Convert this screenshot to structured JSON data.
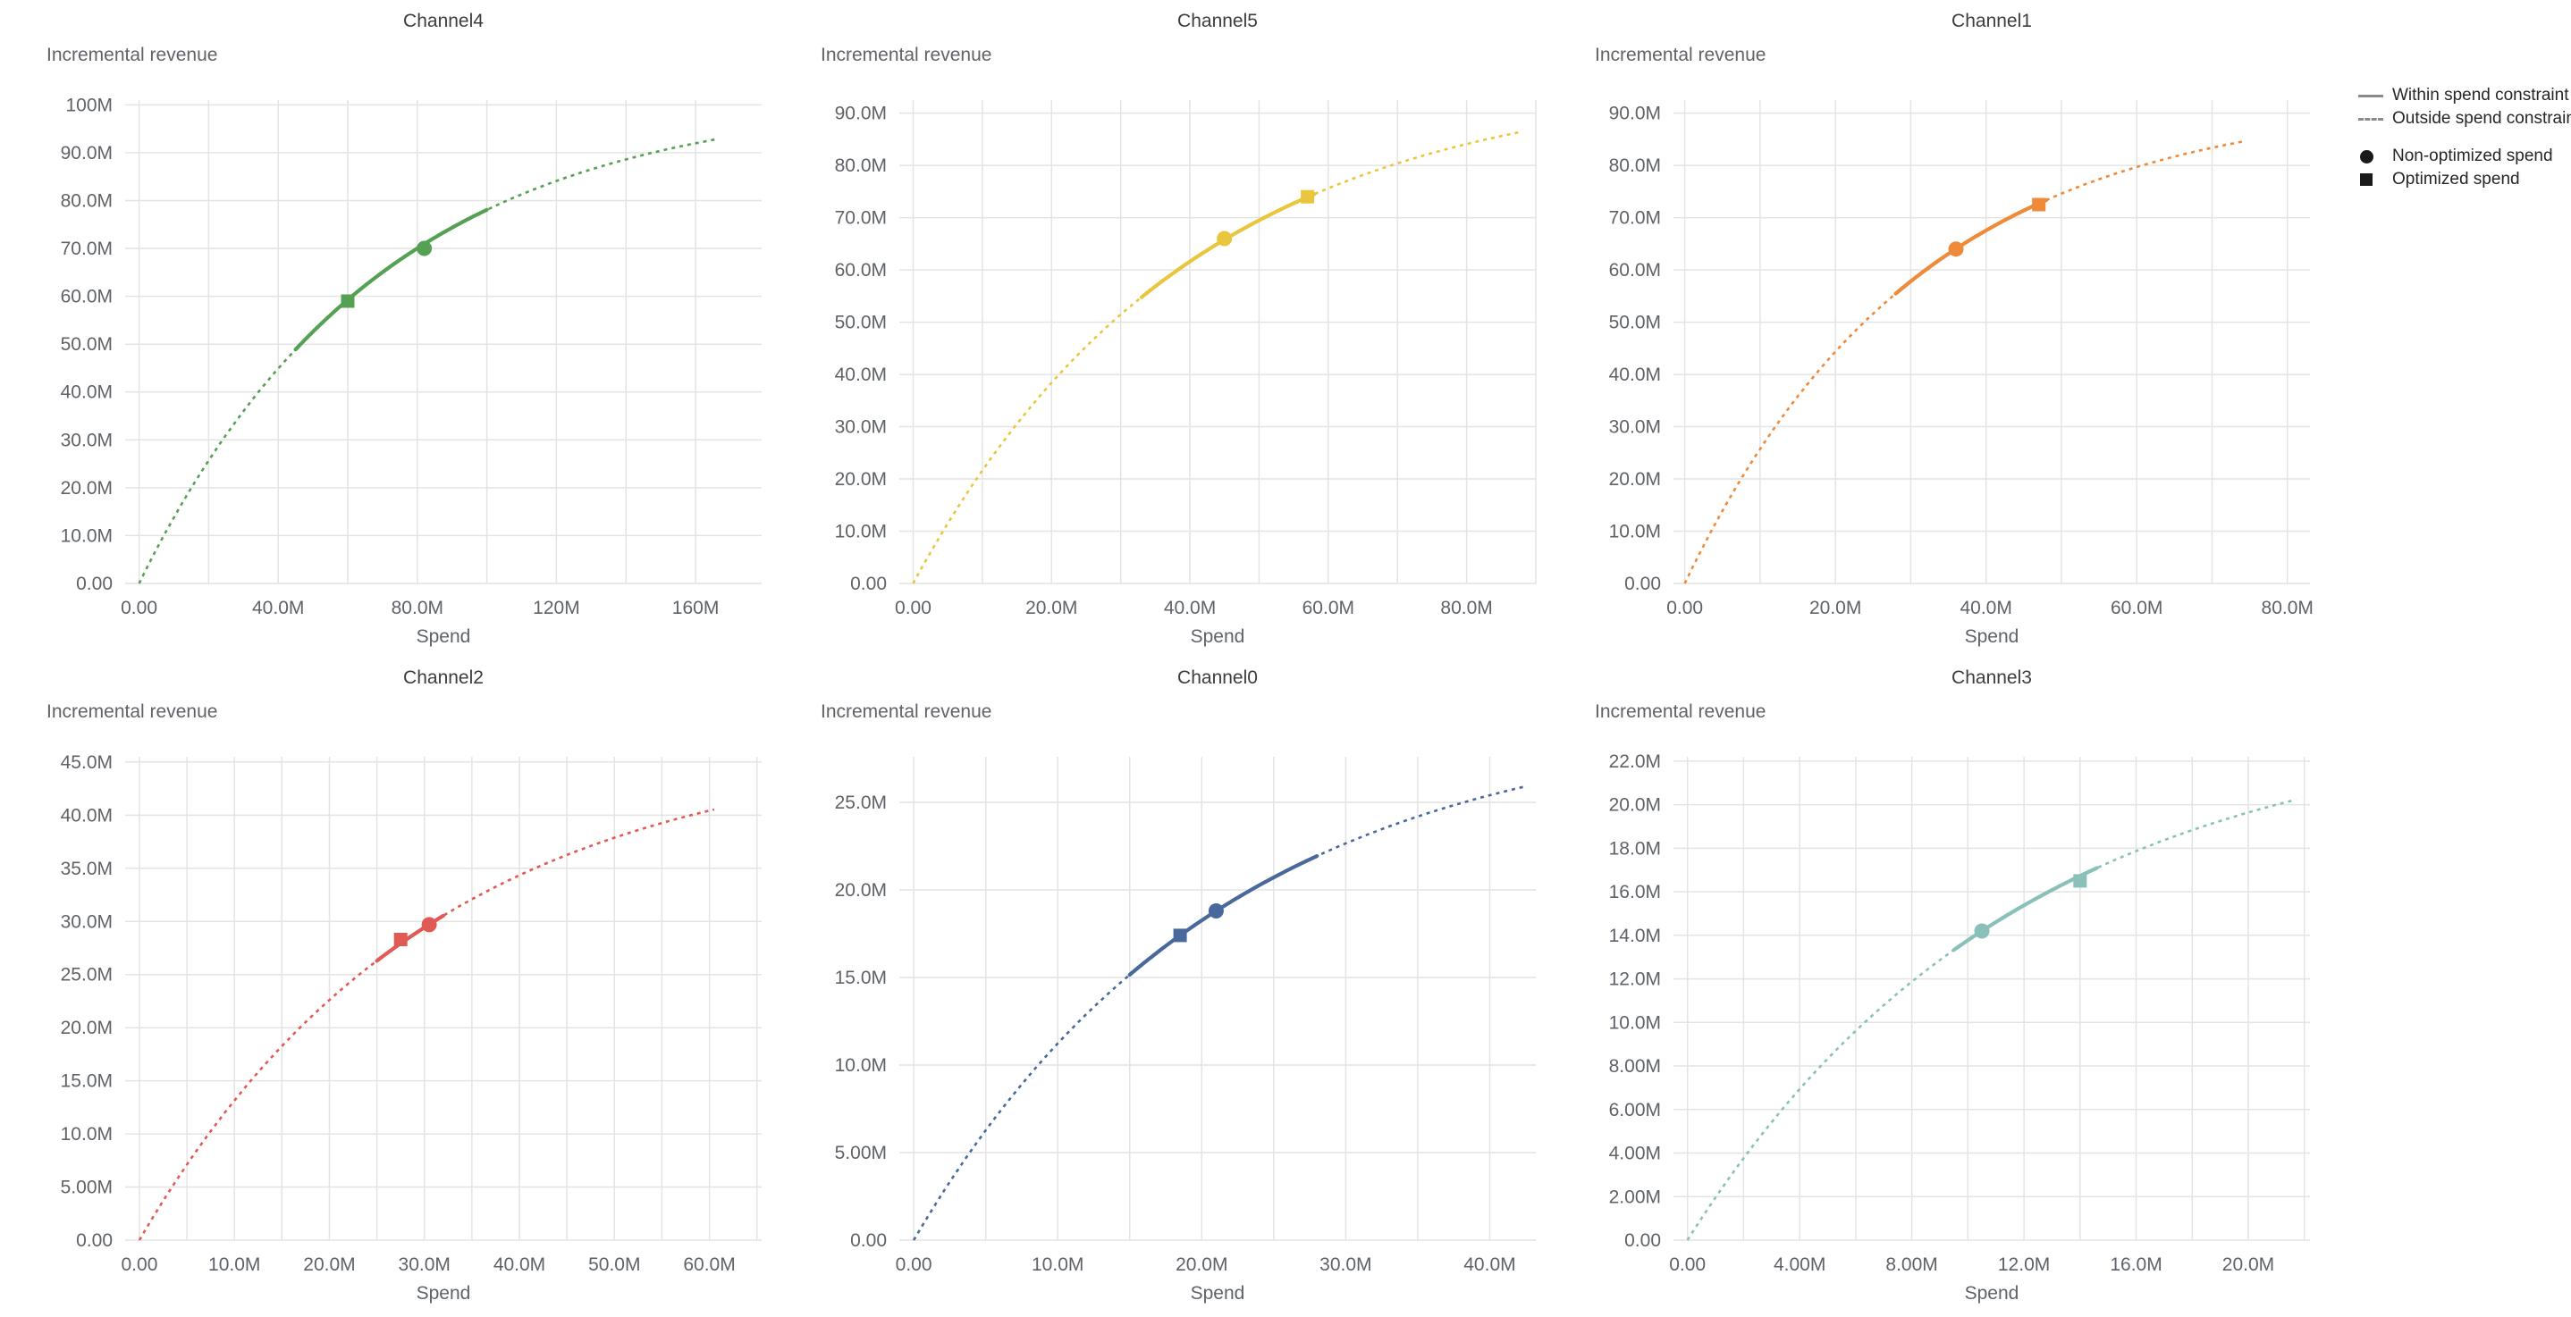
{
  "page": {
    "background": "#ffffff"
  },
  "legend": {
    "line_color": "#8a8a8a",
    "marker_color": "#1a1a1a",
    "items": [
      {
        "label": "Within spend constraint",
        "icon": "solid-line"
      },
      {
        "label": "Outside spend constraint",
        "icon": "dashed-line"
      },
      {
        "label": "Non-optimized spend",
        "icon": "filled-circle"
      },
      {
        "label": "Optimized spend",
        "icon": "filled-square"
      }
    ]
  },
  "axis_style": {
    "grid_color": "#e4e4e4",
    "tick_label_color": "#5f6368",
    "axis_title_color": "#5f6368",
    "chart_title_color": "#3d3d3d"
  },
  "chart_data": [
    {
      "type": "line",
      "title": "Channel4",
      "xlabel": "Spend",
      "ylabel": "Incremental revenue",
      "units": "millions",
      "color": "#55a154",
      "xlim": [
        -4,
        179
      ],
      "ylim": [
        0,
        101
      ],
      "x_grid_step": 20,
      "x_tick_values": [
        0,
        40,
        80,
        120,
        160
      ],
      "x_tick_labels": [
        "0.00",
        "40.0M",
        "80.0M",
        "120M",
        "160M"
      ],
      "y_tick_values": [
        0,
        10,
        20,
        30,
        40,
        50,
        60,
        70,
        80,
        90,
        100
      ],
      "y_tick_labels": [
        "0.00",
        "10.0M",
        "20.0M",
        "30.0M",
        "40.0M",
        "50.0M",
        "60.0M",
        "70.0M",
        "80.0M",
        "90.0M",
        "100M"
      ],
      "curve": {
        "model": "saturating_exponential",
        "ymax": 102,
        "rate": 0.0145,
        "x_start": 0,
        "x_end": 166
      },
      "solid_segment": [
        45,
        100
      ],
      "points": {
        "non_optimized": {
          "marker": "circle",
          "spend": 82,
          "revenue": 70
        },
        "optimized": {
          "marker": "square",
          "spend": 60,
          "revenue": 59
        }
      }
    },
    {
      "type": "line",
      "title": "Channel5",
      "xlabel": "Spend",
      "ylabel": "Incremental revenue",
      "units": "millions",
      "color": "#eac63e",
      "xlim": [
        -2,
        90
      ],
      "ylim": [
        0,
        92.5
      ],
      "x_grid_step": 10,
      "x_tick_values": [
        0,
        20,
        40,
        60,
        80
      ],
      "x_tick_labels": [
        "0.00",
        "20.0M",
        "40.0M",
        "60.0M",
        "80.0M"
      ],
      "y_tick_values": [
        0,
        10,
        20,
        30,
        40,
        50,
        60,
        70,
        80,
        90
      ],
      "y_tick_labels": [
        "0.00",
        "10.0M",
        "20.0M",
        "30.0M",
        "40.0M",
        "50.0M",
        "60.0M",
        "70.0M",
        "80.0M",
        "90.0M"
      ],
      "curve": {
        "model": "saturating_exponential",
        "ymax": 97,
        "rate": 0.0252,
        "x_start": 0,
        "x_end": 88
      },
      "solid_segment": [
        33,
        58
      ],
      "points": {
        "non_optimized": {
          "marker": "circle",
          "spend": 45,
          "revenue": 66
        },
        "optimized": {
          "marker": "square",
          "spend": 57,
          "revenue": 74
        }
      }
    },
    {
      "type": "line",
      "title": "Channel1",
      "xlabel": "Spend",
      "ylabel": "Incremental revenue",
      "units": "millions",
      "color": "#ee8a38",
      "xlim": [
        -1.5,
        83
      ],
      "ylim": [
        0,
        92.5
      ],
      "x_grid_step": 10,
      "x_tick_values": [
        0,
        20,
        40,
        60,
        80
      ],
      "x_tick_labels": [
        "0.00",
        "20.0M",
        "40.0M",
        "60.0M",
        "80.0M"
      ],
      "y_tick_values": [
        0,
        10,
        20,
        30,
        40,
        50,
        60,
        70,
        80,
        90
      ],
      "y_tick_labels": [
        "0.00",
        "10.0M",
        "20.0M",
        "30.0M",
        "40.0M",
        "50.0M",
        "60.0M",
        "70.0M",
        "80.0M",
        "90.0M"
      ],
      "curve": {
        "model": "saturating_exponential",
        "ymax": 93,
        "rate": 0.0324,
        "x_start": 0,
        "x_end": 74
      },
      "solid_segment": [
        28,
        48
      ],
      "points": {
        "non_optimized": {
          "marker": "circle",
          "spend": 36,
          "revenue": 64
        },
        "optimized": {
          "marker": "square",
          "spend": 47,
          "revenue": 72.5
        }
      }
    },
    {
      "type": "line",
      "title": "Channel2",
      "xlabel": "Spend",
      "ylabel": "Incremental revenue",
      "units": "millions",
      "color": "#e05a56",
      "xlim": [
        -1.5,
        65.5
      ],
      "ylim": [
        0,
        45.5
      ],
      "x_grid_step": 5,
      "x_tick_values": [
        0,
        10,
        20,
        30,
        40,
        50,
        60
      ],
      "x_tick_labels": [
        "0.00",
        "10.0M",
        "20.0M",
        "30.0M",
        "40.0M",
        "50.0M",
        "60.0M"
      ],
      "y_tick_values": [
        0,
        5,
        10,
        15,
        20,
        25,
        30,
        35,
        40,
        45
      ],
      "y_tick_labels": [
        "0.00",
        "5.00M",
        "10.0M",
        "15.0M",
        "20.0M",
        "25.0M",
        "30.0M",
        "35.0M",
        "40.0M",
        "45.0M"
      ],
      "curve": {
        "model": "saturating_exponential",
        "ymax": 47,
        "rate": 0.0328,
        "x_start": 0,
        "x_end": 60.5
      },
      "solid_segment": [
        25,
        32
      ],
      "points": {
        "non_optimized": {
          "marker": "circle",
          "spend": 30.5,
          "revenue": 29.7
        },
        "optimized": {
          "marker": "square",
          "spend": 27.5,
          "revenue": 28.3
        }
      }
    },
    {
      "type": "line",
      "title": "Channel0",
      "xlabel": "Spend",
      "ylabel": "Incremental revenue",
      "units": "millions",
      "color": "#49699c",
      "xlim": [
        -1,
        43.2
      ],
      "ylim": [
        0,
        27.6
      ],
      "x_grid_step": 5,
      "x_tick_values": [
        0,
        10,
        20,
        30,
        40
      ],
      "x_tick_labels": [
        "0.00",
        "10.0M",
        "20.0M",
        "30.0M",
        "40.0M"
      ],
      "y_tick_values": [
        0,
        5,
        10,
        15,
        20,
        25
      ],
      "y_tick_labels": [
        "0.00",
        "5.00M",
        "10.0M",
        "15.0M",
        "20.0M",
        "25.0M"
      ],
      "curve": {
        "model": "saturating_exponential",
        "ymax": 30,
        "rate": 0.0469,
        "x_start": 0,
        "x_end": 42.5
      },
      "solid_segment": [
        15,
        28
      ],
      "points": {
        "non_optimized": {
          "marker": "circle",
          "spend": 21,
          "revenue": 18.8
        },
        "optimized": {
          "marker": "square",
          "spend": 18.5,
          "revenue": 17.4
        }
      }
    },
    {
      "type": "line",
      "title": "Channel3",
      "xlabel": "Spend",
      "ylabel": "Incremental revenue",
      "units": "millions",
      "color": "#8ac0ba",
      "xlim": [
        -0.5,
        22.2
      ],
      "ylim": [
        0,
        22.2
      ],
      "x_grid_step": 2,
      "x_tick_values": [
        0,
        4,
        8,
        12,
        16,
        20
      ],
      "x_tick_labels": [
        "0.00",
        "4.00M",
        "8.00M",
        "12.0M",
        "16.0M",
        "20.0M"
      ],
      "y_tick_values": [
        0,
        2,
        4,
        6,
        8,
        10,
        12,
        14,
        16,
        18,
        20,
        22
      ],
      "y_tick_labels": [
        "0.00",
        "2.00M",
        "4.00M",
        "6.00M",
        "8.00M",
        "10.0M",
        "12.0M",
        "14.0M",
        "16.0M",
        "18.0M",
        "20.0M",
        "22.0M"
      ],
      "curve": {
        "model": "saturating_exponential",
        "ymax": 24,
        "rate": 0.0853,
        "x_start": 0,
        "x_end": 21.7
      },
      "solid_segment": [
        9.5,
        14.6
      ],
      "points": {
        "non_optimized": {
          "marker": "circle",
          "spend": 10.5,
          "revenue": 14.2
        },
        "optimized": {
          "marker": "square",
          "spend": 14,
          "revenue": 16.5
        }
      }
    }
  ]
}
